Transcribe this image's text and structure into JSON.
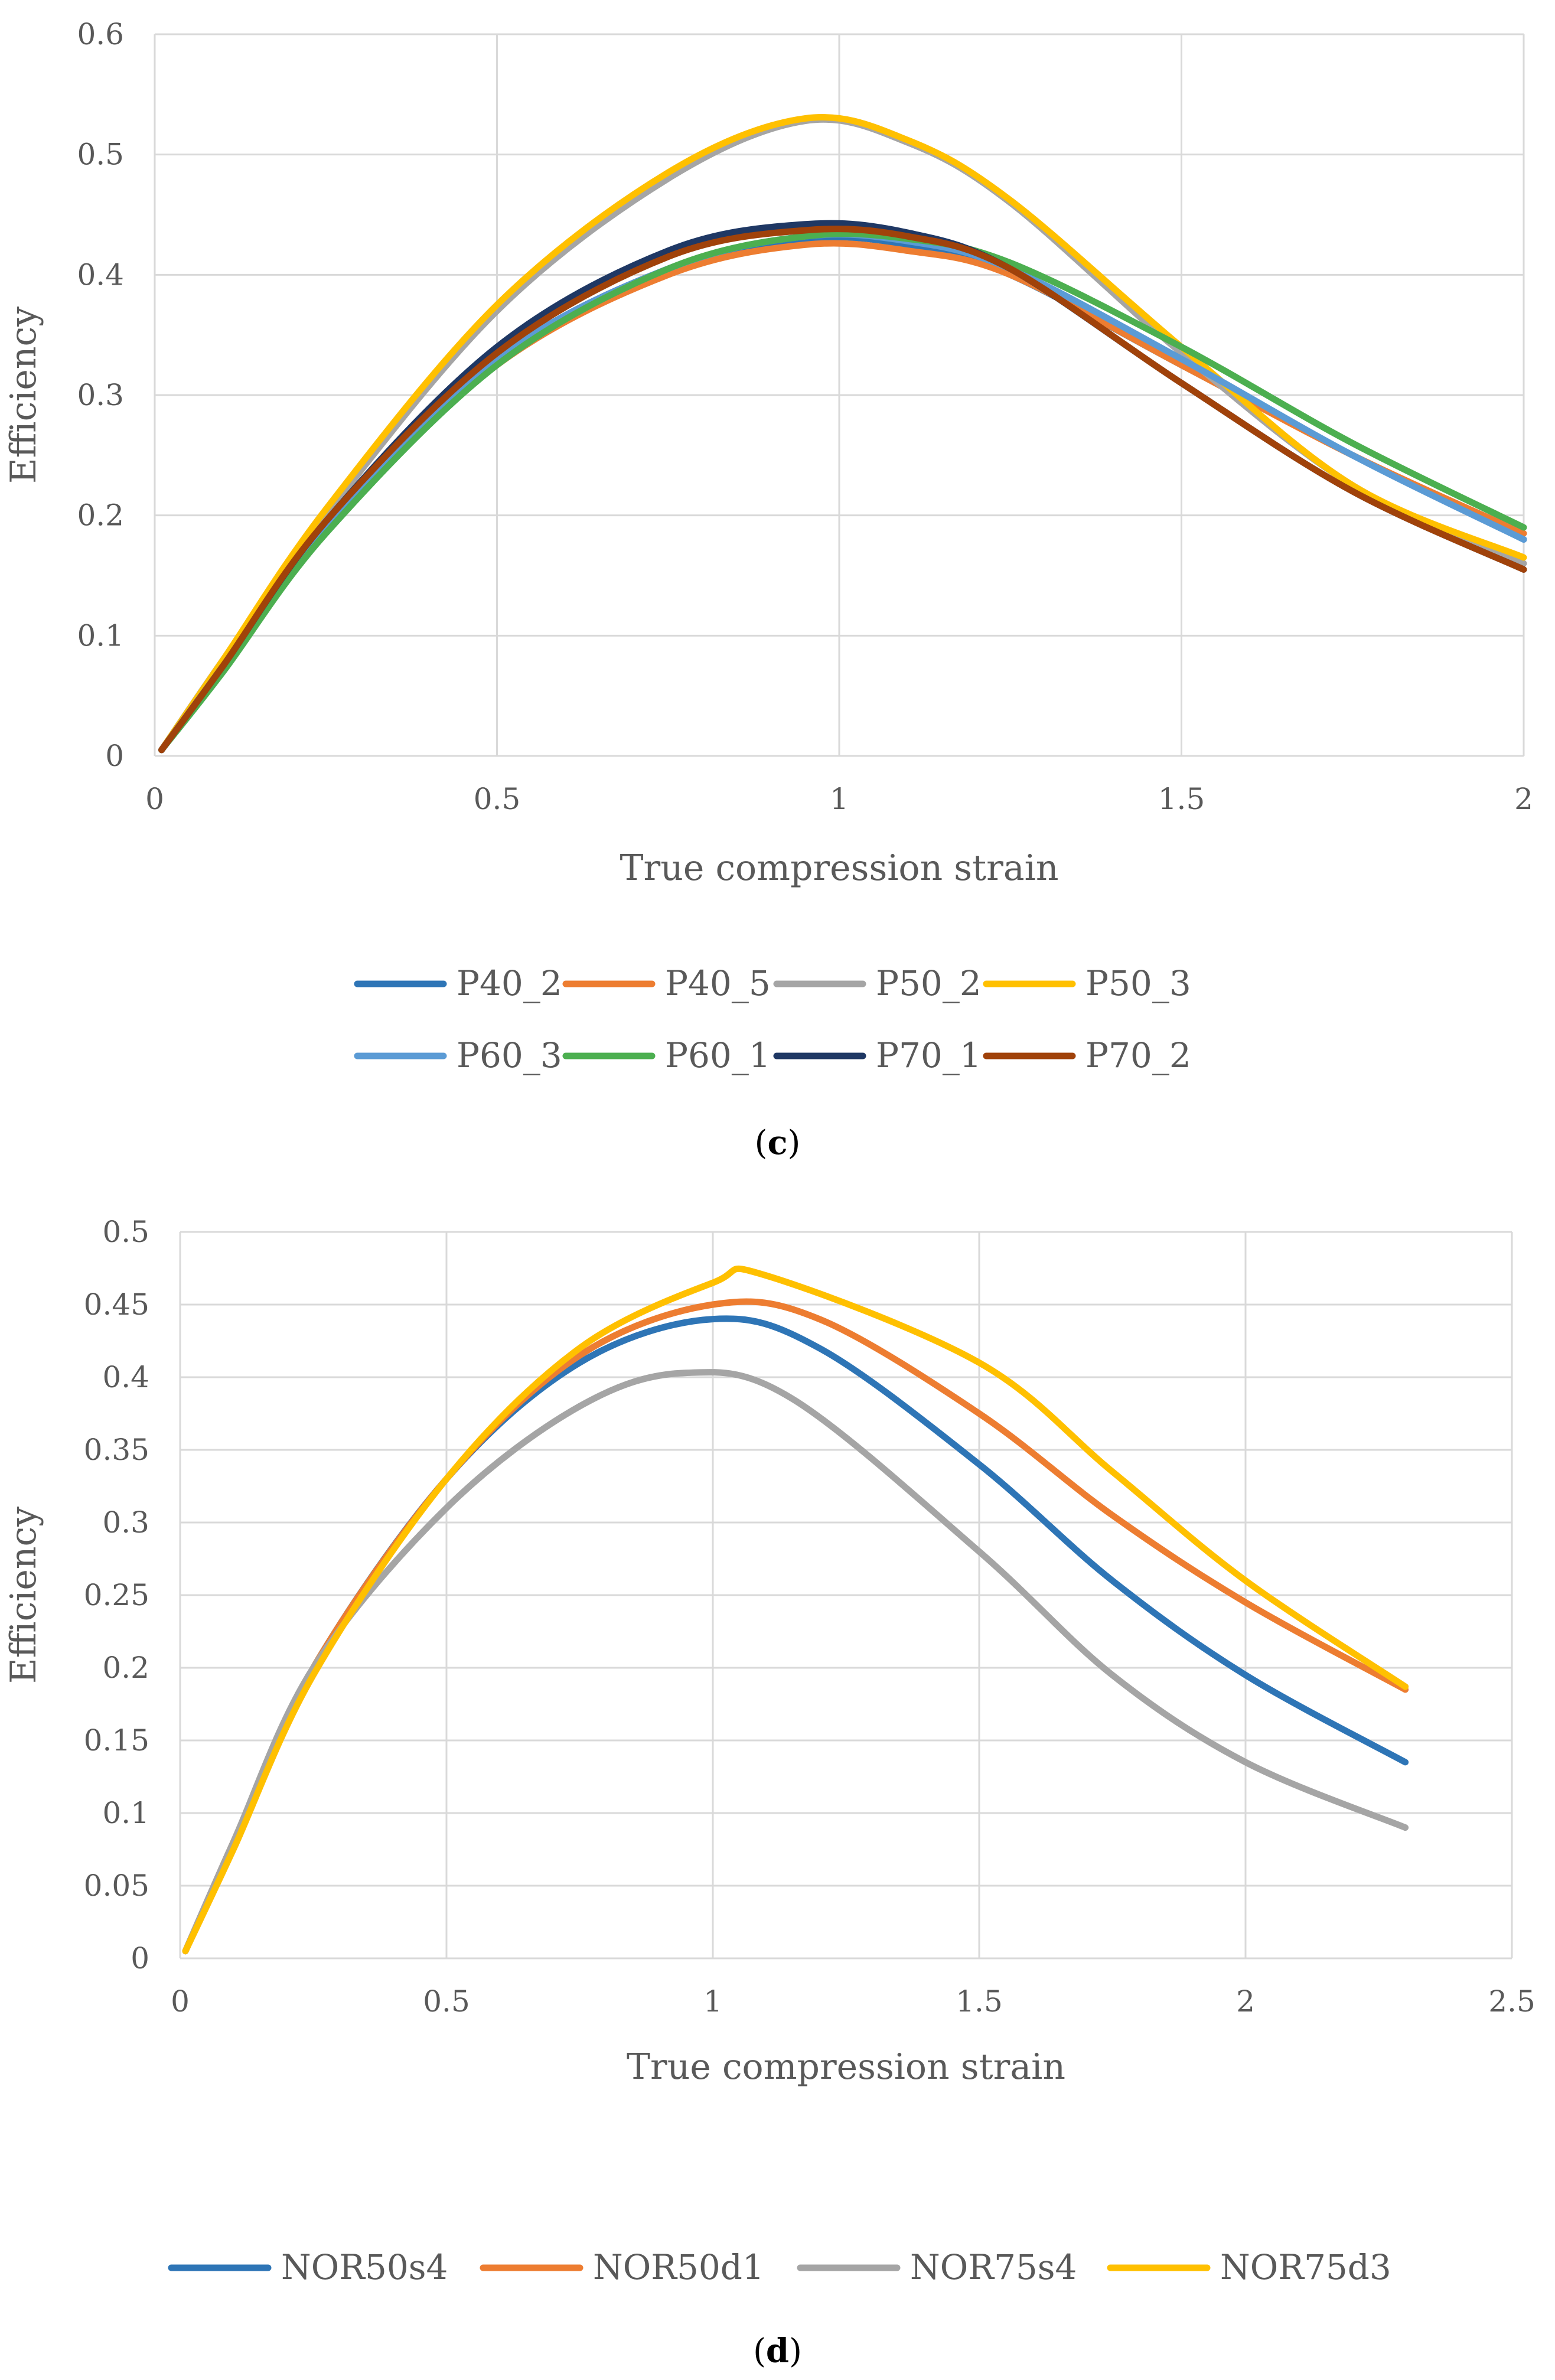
{
  "chart_data": [
    {
      "id": "c",
      "type": "line",
      "caption": {
        "open": "(",
        "letter": "c",
        "close": ")"
      },
      "xlabel": "True compression strain",
      "ylabel": "Efficiency",
      "xlim": [
        0,
        2
      ],
      "ylim": [
        0,
        0.6
      ],
      "xticks": [
        0,
        0.5,
        1,
        1.5,
        2
      ],
      "xtick_labels": [
        "0",
        "0.5",
        "1",
        "1.5",
        "2"
      ],
      "yticks": [
        0,
        0.1,
        0.2,
        0.3,
        0.4,
        0.5,
        0.6
      ],
      "ytick_labels": [
        "0",
        "0.1",
        "0.2",
        "0.3",
        "0.4",
        "0.5",
        "0.6"
      ],
      "grid": true,
      "legend": "bottom",
      "series": [
        {
          "name": "P40_2",
          "color": "#2E75B6",
          "x": [
            0.01,
            0.1,
            0.25,
            0.5,
            0.75,
            0.95,
            1.1,
            1.25,
            1.5,
            1.75,
            2.0
          ],
          "y": [
            0.005,
            0.075,
            0.19,
            0.33,
            0.405,
            0.43,
            0.425,
            0.4,
            0.325,
            0.25,
            0.18
          ]
        },
        {
          "name": "P40_5",
          "color": "#ED7D31",
          "x": [
            0.01,
            0.1,
            0.25,
            0.5,
            0.75,
            0.95,
            1.1,
            1.25,
            1.5,
            1.75,
            2.0
          ],
          "y": [
            0.005,
            0.075,
            0.19,
            0.325,
            0.4,
            0.425,
            0.42,
            0.4,
            0.325,
            0.25,
            0.185
          ]
        },
        {
          "name": "P50_2",
          "color": "#A5A5A5",
          "x": [
            0.01,
            0.1,
            0.25,
            0.5,
            0.75,
            0.95,
            1.1,
            1.25,
            1.5,
            1.75,
            2.0
          ],
          "y": [
            0.005,
            0.08,
            0.2,
            0.37,
            0.48,
            0.528,
            0.51,
            0.46,
            0.335,
            0.225,
            0.16
          ]
        },
        {
          "name": "P50_3",
          "color": "#FFC000",
          "x": [
            0.01,
            0.1,
            0.25,
            0.5,
            0.75,
            0.95,
            1.1,
            1.25,
            1.5,
            1.75,
            2.0
          ],
          "y": [
            0.005,
            0.08,
            0.205,
            0.375,
            0.485,
            0.53,
            0.512,
            0.462,
            0.34,
            0.225,
            0.165
          ]
        },
        {
          "name": "P60_3",
          "color": "#5B9BD5",
          "x": [
            0.01,
            0.1,
            0.25,
            0.5,
            0.75,
            0.95,
            1.1,
            1.25,
            1.5,
            1.75,
            2.0
          ],
          "y": [
            0.005,
            0.075,
            0.19,
            0.33,
            0.405,
            0.432,
            0.428,
            0.405,
            0.33,
            0.25,
            0.18
          ]
        },
        {
          "name": "P60_1",
          "color": "#4CAF50",
          "x": [
            0.01,
            0.1,
            0.25,
            0.5,
            0.75,
            0.95,
            1.1,
            1.25,
            1.5,
            1.75,
            2.0
          ],
          "y": [
            0.005,
            0.07,
            0.185,
            0.325,
            0.405,
            0.432,
            0.43,
            0.41,
            0.34,
            0.26,
            0.19
          ]
        },
        {
          "name": "P70_1",
          "color": "#1F3864",
          "x": [
            0.01,
            0.1,
            0.25,
            0.5,
            0.75,
            0.95,
            1.1,
            1.25,
            1.5,
            1.75,
            2.0
          ],
          "y": [
            0.005,
            0.075,
            0.195,
            0.34,
            0.42,
            0.442,
            0.435,
            0.405,
            0.31,
            0.22,
            0.155
          ]
        },
        {
          "name": "P70_2",
          "color": "#A0420A",
          "x": [
            0.01,
            0.1,
            0.25,
            0.5,
            0.75,
            0.95,
            1.1,
            1.25,
            1.5,
            1.75,
            2.0
          ],
          "y": [
            0.005,
            0.075,
            0.195,
            0.335,
            0.415,
            0.437,
            0.432,
            0.405,
            0.31,
            0.22,
            0.155
          ]
        }
      ]
    },
    {
      "id": "d",
      "type": "line",
      "caption": {
        "open": "(",
        "letter": "d",
        "close": ")"
      },
      "xlabel": "True compression strain",
      "ylabel": "Efficiency",
      "xlim": [
        0,
        2.5
      ],
      "ylim": [
        0,
        0.5
      ],
      "xticks": [
        0,
        0.5,
        1,
        1.5,
        2,
        2.5
      ],
      "xtick_labels": [
        "0",
        "0.5",
        "1",
        "1.5",
        "2",
        "2.5"
      ],
      "yticks": [
        0,
        0.05,
        0.1,
        0.15,
        0.2,
        0.25,
        0.3,
        0.35,
        0.4,
        0.45,
        0.5
      ],
      "ytick_labels": [
        "0",
        "0.05",
        "0.1",
        "0.15",
        "0.2",
        "0.25",
        "0.3",
        "0.35",
        "0.4",
        "0.45",
        "0.5"
      ],
      "grid": true,
      "legend": "bottom",
      "series": [
        {
          "name": "NOR50s4",
          "color": "#2E75B6",
          "x": [
            0.01,
            0.1,
            0.25,
            0.5,
            0.75,
            1.0,
            1.2,
            1.5,
            1.75,
            2.0,
            2.3
          ],
          "y": [
            0.005,
            0.08,
            0.2,
            0.33,
            0.41,
            0.44,
            0.42,
            0.34,
            0.26,
            0.195,
            0.135
          ]
        },
        {
          "name": "NOR50d1",
          "color": "#ED7D31",
          "x": [
            0.01,
            0.1,
            0.25,
            0.5,
            0.75,
            1.0,
            1.2,
            1.5,
            1.75,
            2.0,
            2.3
          ],
          "y": [
            0.005,
            0.08,
            0.2,
            0.33,
            0.415,
            0.45,
            0.44,
            0.375,
            0.305,
            0.245,
            0.185
          ]
        },
        {
          "name": "NOR75s4",
          "color": "#A5A5A5",
          "x": [
            0.01,
            0.1,
            0.25,
            0.5,
            0.75,
            0.95,
            1.15,
            1.5,
            1.75,
            2.0,
            2.3
          ],
          "y": [
            0.005,
            0.08,
            0.2,
            0.31,
            0.38,
            0.403,
            0.385,
            0.28,
            0.195,
            0.135,
            0.09
          ]
        },
        {
          "name": "NOR75d3",
          "color": "#FFC000",
          "x": [
            0.01,
            0.1,
            0.25,
            0.5,
            0.75,
            1.0,
            1.1,
            1.5,
            1.75,
            2.0,
            2.3
          ],
          "y": [
            0.005,
            0.075,
            0.195,
            0.33,
            0.42,
            0.465,
            0.47,
            0.41,
            0.335,
            0.26,
            0.187
          ]
        }
      ]
    }
  ]
}
